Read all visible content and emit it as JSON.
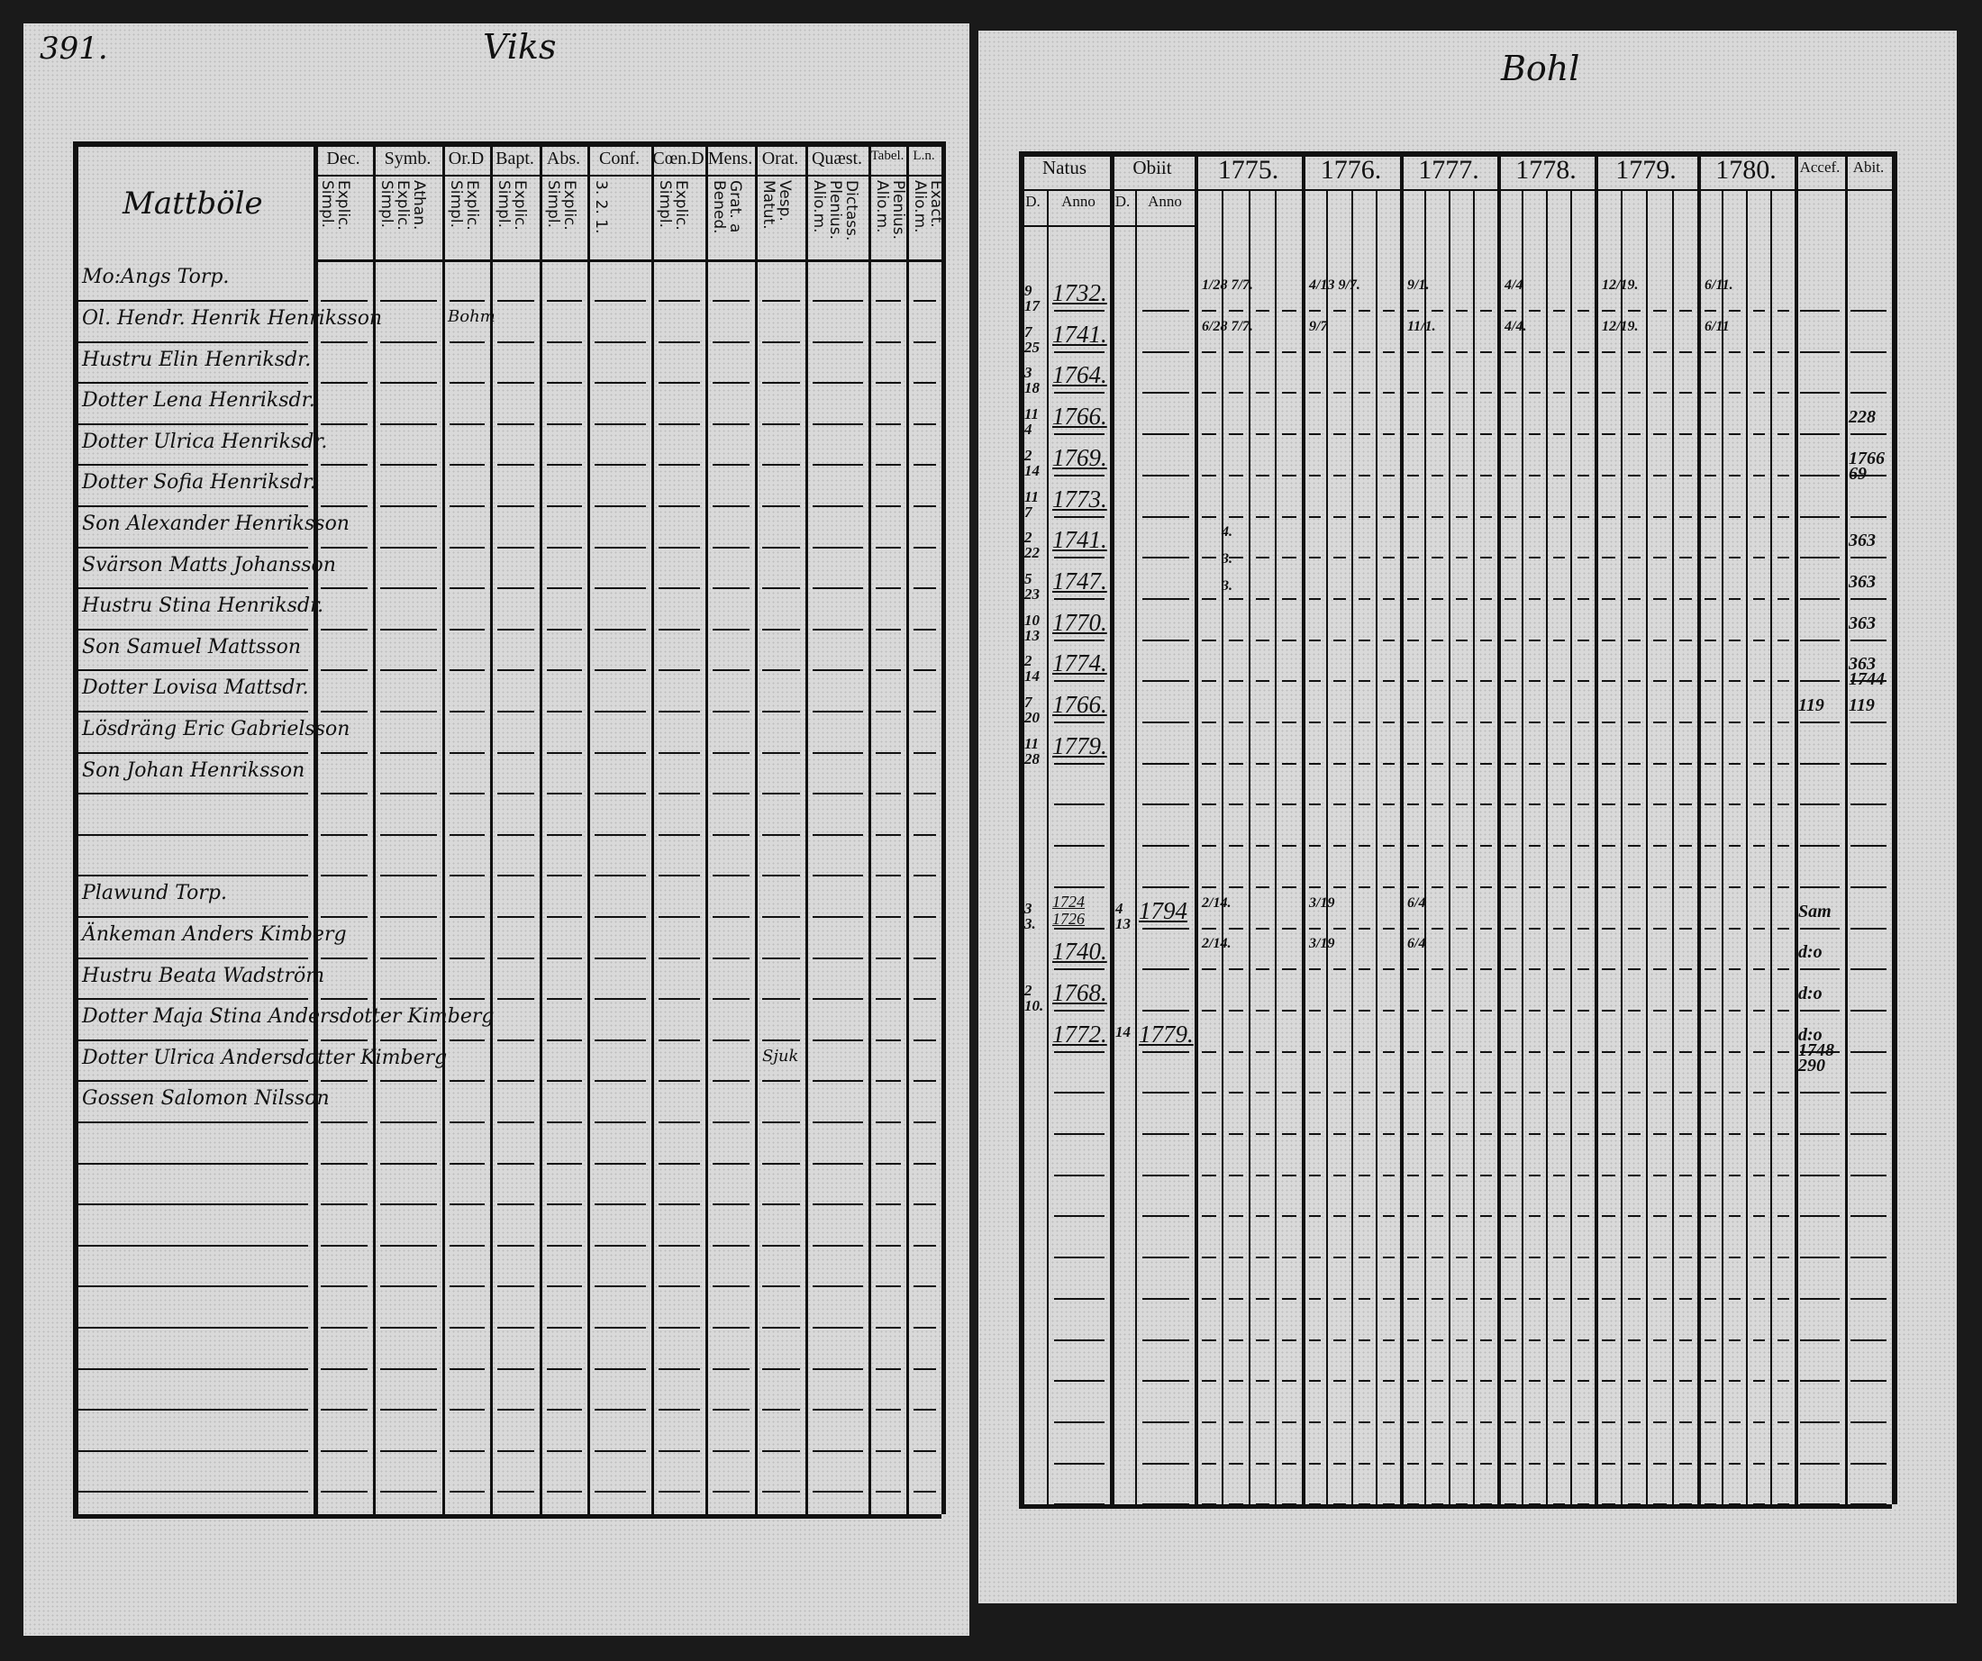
{
  "left_page": {
    "page_number": "391.",
    "parish_heading": "Viks",
    "village": "Mattböle",
    "headers": [
      {
        "top": "Dec.",
        "sub": "Explic. Simpl."
      },
      {
        "top": "Symb.",
        "sub": "Athan. Explic. Simpl."
      },
      {
        "top": "Or.D",
        "sub": "Explic. Simpl."
      },
      {
        "top": "Bapt.",
        "sub": "Explic. Simpl."
      },
      {
        "top": "Abs.",
        "sub": "Explic. Simpl."
      },
      {
        "top": "Conf.",
        "sub": "3. 2. 1."
      },
      {
        "top": "Cœn.D",
        "sub": "Explic. Simpl."
      },
      {
        "top": "Mens.",
        "sub": "Grat. a Bened."
      },
      {
        "top": "Orat.",
        "sub": "Vesp. Matut."
      },
      {
        "top": "Quæst.",
        "sub": "Dictass. Plenius. Alio.m."
      },
      {
        "top": "Tabel.",
        "sub": "Plenius. Alio.m."
      },
      {
        "top": "L.n.",
        "sub": "Exact. Alio.m."
      }
    ],
    "rows": [
      {
        "name": "Mo:Angs Torp.",
        "note": ""
      },
      {
        "name": "Ol. Hendr. Henrik Henriksson",
        "note": "Bohm"
      },
      {
        "name": "Hustru Elin Henriksdr.",
        "note": ""
      },
      {
        "name": "Dotter Lena Henriksdr.",
        "note": ""
      },
      {
        "name": "Dotter Ulrica Henriksdr.",
        "note": ""
      },
      {
        "name": "Dotter Sofia Henriksdr.",
        "note": ""
      },
      {
        "name": "Son Alexander Henriksson",
        "note": ""
      },
      {
        "name": "Svärson Matts Johansson",
        "note": ""
      },
      {
        "name": "Hustru Stina Henriksdr.",
        "note": ""
      },
      {
        "name": "Son Samuel Mattsson",
        "note": ""
      },
      {
        "name": "Dotter Lovisa Mattsdr.",
        "note": ""
      },
      {
        "name": "Lösdräng Eric Gabrielsson",
        "note": ""
      },
      {
        "name": "Son Johan Henriksson",
        "note": ""
      },
      {
        "name": "",
        "note": ""
      },
      {
        "name": "",
        "note": ""
      },
      {
        "name": "Plawund Torp.",
        "note": ""
      },
      {
        "name": "Änkeman Anders Kimberg",
        "note": ""
      },
      {
        "name": "Hustru Beata Wadström",
        "note": ""
      },
      {
        "name": "Dotter Maja Stina Andersdotter Kimberg",
        "note": ""
      },
      {
        "name": "Dotter Ulrica Andersdotter Kimberg",
        "note": "Sjuk"
      },
      {
        "name": "Gossen Salomon Nilsson",
        "note": ""
      }
    ]
  },
  "right_page": {
    "heading": "Bohl",
    "headers": {
      "natus": "Natus",
      "obiit": "Obiit",
      "sub_day": "D.",
      "sub_year": "Anno",
      "years": [
        "1775.",
        "1776.",
        "1777.",
        "1778.",
        "1779.",
        "1780."
      ],
      "accessit": "Accef.",
      "abiit": "Abit."
    },
    "rows": [
      {
        "day": "9 17",
        "natus": "1732.",
        "obiit_day": "",
        "obiit": "",
        "abiit": ""
      },
      {
        "day": "7 25",
        "natus": "1741.",
        "obiit_day": "",
        "obiit": "",
        "abiit": ""
      },
      {
        "day": "3 18",
        "natus": "1764.",
        "obiit_day": "",
        "obiit": "",
        "abiit": ""
      },
      {
        "day": "11 4",
        "natus": "1766.",
        "obiit_day": "",
        "obiit": "",
        "abiit": "228"
      },
      {
        "day": "2 14",
        "natus": "1769.",
        "obiit_day": "",
        "obiit": "",
        "abiit": "1766 69"
      },
      {
        "day": "11 7",
        "natus": "1773.",
        "obiit_day": "",
        "obiit": "",
        "abiit": ""
      },
      {
        "day": "2 22",
        "natus": "1741.",
        "obiit_day": "",
        "obiit": "",
        "abiit": "363"
      },
      {
        "day": "5 23",
        "natus": "1747.",
        "obiit_day": "",
        "obiit": "",
        "abiit": "363"
      },
      {
        "day": "10 13",
        "natus": "1770.",
        "obiit_day": "",
        "obiit": "",
        "abiit": "363"
      },
      {
        "day": "2 14",
        "natus": "1774.",
        "obiit_day": "",
        "obiit": "",
        "abiit": "363 1744"
      },
      {
        "day": "7 20",
        "natus": "1766.",
        "obiit_day": "",
        "obiit": "",
        "abiit": "119",
        "accessit": "119"
      },
      {
        "day": "11 28",
        "natus": "1779.",
        "obiit_day": "",
        "obiit": "",
        "abiit": ""
      },
      {
        "day": "",
        "natus": "",
        "obiit_day": "",
        "obiit": "",
        "abiit": ""
      },
      {
        "day": "",
        "natus": "",
        "obiit_day": "",
        "obiit": "",
        "abiit": ""
      },
      {
        "day": "",
        "natus": "",
        "obiit_day": "",
        "obiit": "",
        "abiit": ""
      },
      {
        "day": "3 3.",
        "natus": "1724 1726",
        "obiit_day": "4 13",
        "obiit": "1794",
        "abiit": "",
        "accessit": "Sam"
      },
      {
        "day": "",
        "natus": "1740.",
        "obiit_day": "",
        "obiit": "",
        "abiit": "",
        "accessit": "d:o"
      },
      {
        "day": "2 10.",
        "natus": "1768.",
        "obiit_day": "",
        "obiit": "",
        "abiit": "",
        "accessit": "d:o"
      },
      {
        "day": "",
        "natus": "1772.",
        "obiit_day": "14",
        "obiit": "1779.",
        "abiit": "",
        "accessit": "d:o 1748 290"
      }
    ],
    "year_marks": [
      {
        "row": 0,
        "marks": [
          "1/28 7/7.",
          "4/13 9/7.",
          "9/1.",
          "4/4",
          "12/19.",
          "6/11."
        ]
      },
      {
        "row": 1,
        "marks": [
          "6/28 7/7.",
          "9/7",
          "11/1.",
          "4/4.",
          "12/19.",
          "6/11"
        ]
      },
      {
        "row": 6,
        "marks": [
          "4.",
          "3.",
          "3."
        ]
      },
      {
        "row": 15,
        "marks": [
          "2/14.",
          "3/19",
          "6/4"
        ]
      },
      {
        "row": 16,
        "marks": [
          "2/14.",
          "3/19",
          "6/4"
        ]
      }
    ]
  },
  "colors": {
    "ink": "#111111",
    "paper": "#d9d9d9",
    "background": "#1a1a1a"
  }
}
